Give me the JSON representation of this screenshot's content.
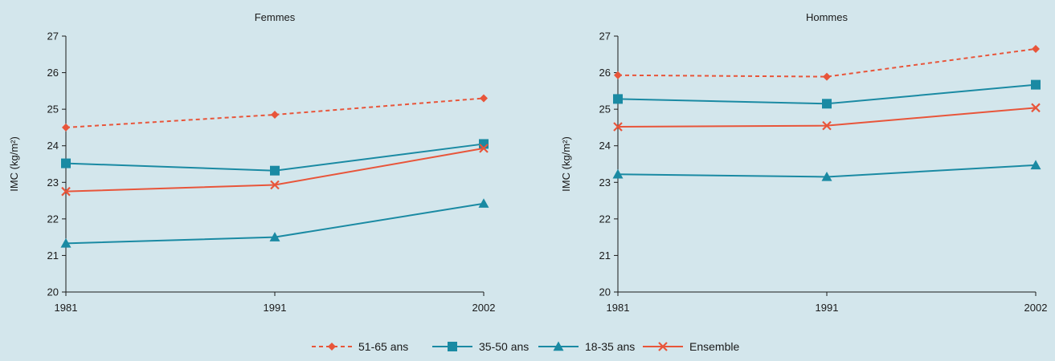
{
  "colors": {
    "background": "#d3e6ec",
    "orange": "#e8553a",
    "teal": "#1a8aa3"
  },
  "chart_data": [
    {
      "type": "line",
      "title": "Femmes",
      "xlabel": "",
      "ylabel": "IMC (kg/m²)",
      "ylim": [
        20,
        27
      ],
      "yticks": [
        "20",
        "21",
        "22",
        "23",
        "24",
        "25",
        "26",
        "27"
      ],
      "x": [
        "1981",
        "1991",
        "2002"
      ],
      "grid": false,
      "series": [
        {
          "name": "51-65 ans",
          "values": [
            24.5,
            24.85,
            25.3
          ],
          "color": "#e8553a",
          "dash": true,
          "marker": "diamond"
        },
        {
          "name": "35-50 ans",
          "values": [
            23.52,
            23.32,
            24.05
          ],
          "color": "#1a8aa3",
          "dash": false,
          "marker": "square"
        },
        {
          "name": "18-35 ans",
          "values": [
            21.33,
            21.5,
            22.42
          ],
          "color": "#1a8aa3",
          "dash": false,
          "marker": "triangle"
        },
        {
          "name": "Ensemble",
          "values": [
            22.75,
            22.93,
            23.93
          ],
          "color": "#e8553a",
          "dash": false,
          "marker": "x"
        }
      ]
    },
    {
      "type": "line",
      "title": "Hommes",
      "xlabel": "",
      "ylabel": "IMC (kg/m²)",
      "ylim": [
        20,
        27
      ],
      "yticks": [
        "20",
        "21",
        "22",
        "23",
        "24",
        "25",
        "26",
        "27"
      ],
      "x": [
        "1981",
        "1991",
        "2002"
      ],
      "grid": false,
      "series": [
        {
          "name": "51-65 ans",
          "values": [
            25.93,
            25.89,
            26.65
          ],
          "color": "#e8553a",
          "dash": true,
          "marker": "diamond"
        },
        {
          "name": "35-50 ans",
          "values": [
            25.28,
            25.15,
            25.67
          ],
          "color": "#1a8aa3",
          "dash": false,
          "marker": "square"
        },
        {
          "name": "18-35 ans",
          "values": [
            23.22,
            23.15,
            23.47
          ],
          "color": "#1a8aa3",
          "dash": false,
          "marker": "triangle"
        },
        {
          "name": "Ensemble",
          "values": [
            24.52,
            24.55,
            25.04
          ],
          "color": "#e8553a",
          "dash": false,
          "marker": "x"
        }
      ]
    }
  ],
  "legend": {
    "placement": "bottom-center",
    "items": [
      {
        "label": "51-65 ans",
        "color": "#e8553a",
        "dash": true,
        "marker": "diamond"
      },
      {
        "label": "35-50 ans",
        "color": "#1a8aa3",
        "dash": false,
        "marker": "square"
      },
      {
        "label": "18-35 ans",
        "color": "#1a8aa3",
        "dash": false,
        "marker": "triangle"
      },
      {
        "label": "Ensemble",
        "color": "#e8553a",
        "dash": false,
        "marker": "x"
      }
    ]
  }
}
